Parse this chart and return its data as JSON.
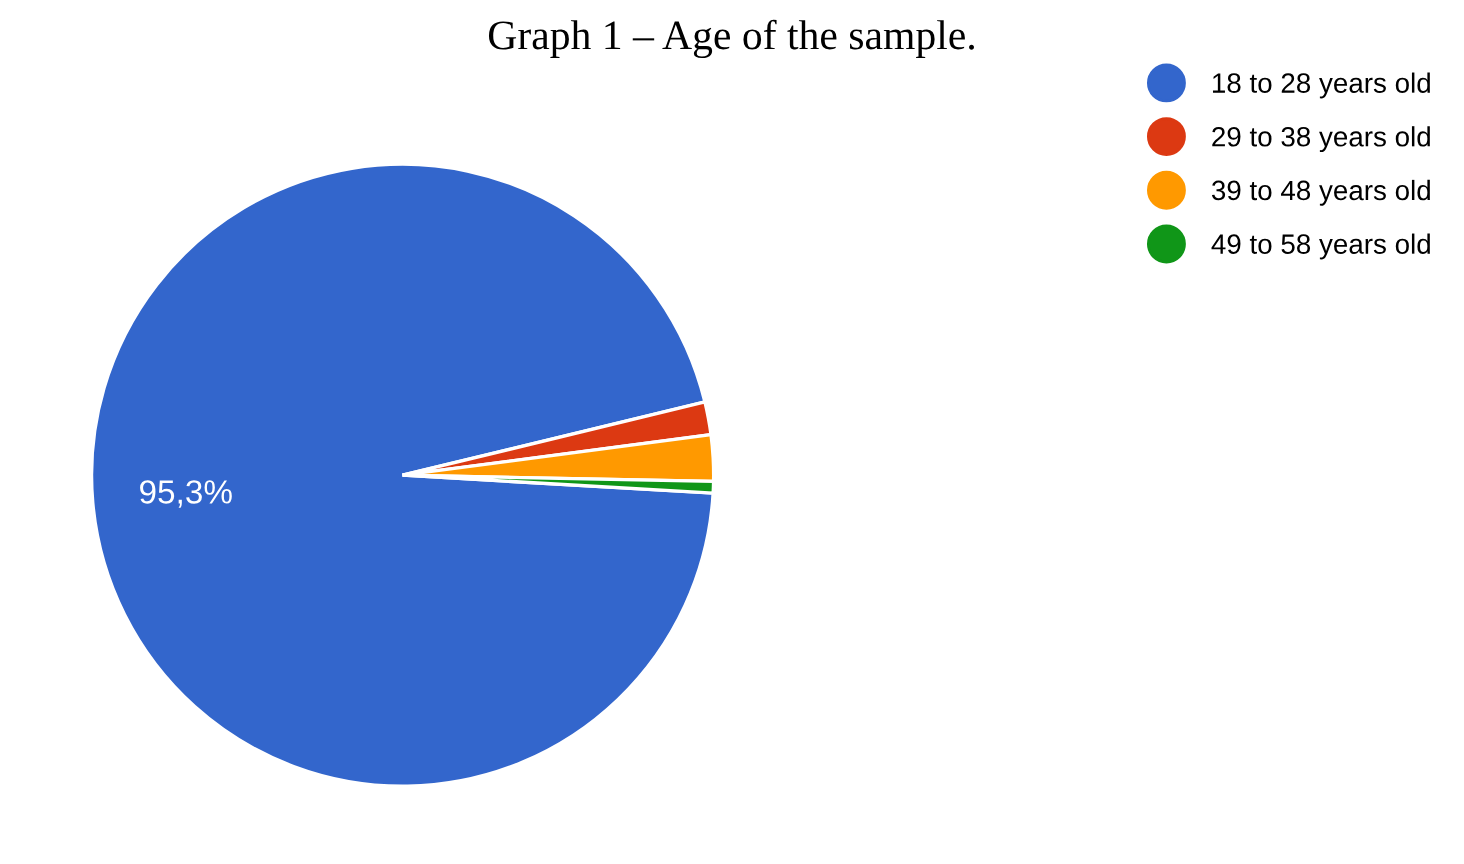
{
  "chart_data": {
    "type": "pie",
    "title": "Graph 1 – Age of the sample.",
    "categories": [
      "18 to 28 years old",
      "29 to 38 years old",
      "39 to 48 years old",
      "49 to 58 years old"
    ],
    "values": [
      95.3,
      1.7,
      2.4,
      0.6
    ],
    "colors": [
      "#3366cc",
      "#dc3912",
      "#ff9900",
      "#109618"
    ],
    "value_labels": [
      "95,3%",
      null,
      null,
      null
    ],
    "legend": "top right"
  }
}
